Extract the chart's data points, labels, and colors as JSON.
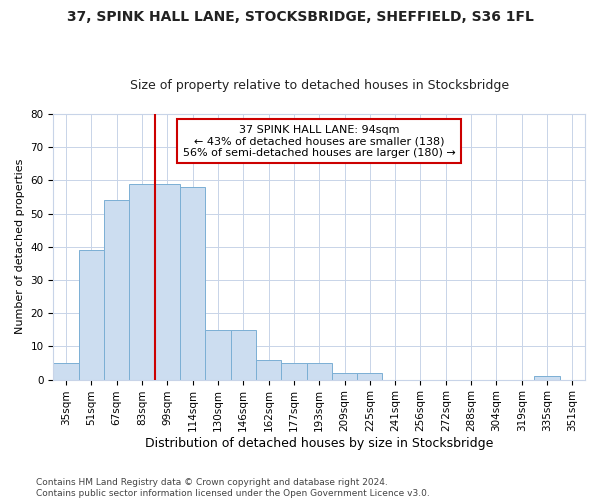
{
  "title_line1": "37, SPINK HALL LANE, STOCKSBRIDGE, SHEFFIELD, S36 1FL",
  "title_line2": "Size of property relative to detached houses in Stocksbridge",
  "xlabel": "Distribution of detached houses by size in Stocksbridge",
  "ylabel": "Number of detached properties",
  "footnote": "Contains HM Land Registry data © Crown copyright and database right 2024.\nContains public sector information licensed under the Open Government Licence v3.0.",
  "categories": [
    "35sqm",
    "51sqm",
    "67sqm",
    "83sqm",
    "99sqm",
    "114sqm",
    "130sqm",
    "146sqm",
    "162sqm",
    "177sqm",
    "193sqm",
    "209sqm",
    "225sqm",
    "241sqm",
    "256sqm",
    "272sqm",
    "288sqm",
    "304sqm",
    "319sqm",
    "335sqm",
    "351sqm"
  ],
  "values": [
    5,
    39,
    54,
    59,
    59,
    58,
    15,
    15,
    6,
    5,
    5,
    2,
    2,
    0,
    0,
    0,
    0,
    0,
    0,
    1,
    0
  ],
  "bar_color": "#ccddf0",
  "bar_edge_color": "#7bafd4",
  "grid_color": "#c8d4e8",
  "vline_color": "#cc0000",
  "vline_position": 3.5,
  "annotation_text": "37 SPINK HALL LANE: 94sqm\n← 43% of detached houses are smaller (138)\n56% of semi-detached houses are larger (180) →",
  "annotation_box_edgecolor": "#cc0000",
  "ylim": [
    0,
    80
  ],
  "yticks": [
    0,
    10,
    20,
    30,
    40,
    50,
    60,
    70,
    80
  ],
  "background_color": "#ffffff",
  "axes_bg_color": "#ffffff",
  "title1_fontsize": 10,
  "title2_fontsize": 9,
  "ylabel_fontsize": 8,
  "xlabel_fontsize": 9,
  "tick_fontsize": 7.5,
  "footnote_fontsize": 6.5
}
